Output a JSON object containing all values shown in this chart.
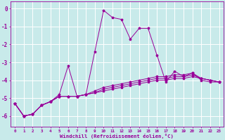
{
  "xlabel": "Windchill (Refroidissement éolien,°C)",
  "background_color": "#c8eaea",
  "grid_color": "#a0d0d0",
  "line_color": "#990099",
  "xlim": [
    -0.5,
    23.5
  ],
  "ylim": [
    -6.6,
    0.4
  ],
  "yticks": [
    0,
    -1,
    -2,
    -3,
    -4,
    -5,
    -6
  ],
  "xticks": [
    0,
    1,
    2,
    3,
    4,
    5,
    6,
    7,
    8,
    9,
    10,
    11,
    12,
    13,
    14,
    15,
    16,
    17,
    18,
    19,
    20,
    21,
    22,
    23
  ],
  "series1": [
    [
      0,
      -5.3
    ],
    [
      1,
      -6.0
    ],
    [
      2,
      -5.9
    ],
    [
      3,
      -5.4
    ],
    [
      4,
      -5.2
    ],
    [
      5,
      -4.8
    ],
    [
      6,
      -3.2
    ],
    [
      7,
      -4.9
    ],
    [
      8,
      -4.8
    ],
    [
      9,
      -2.4
    ],
    [
      10,
      -0.1
    ],
    [
      11,
      -0.5
    ],
    [
      12,
      -0.6
    ],
    [
      13,
      -1.7
    ],
    [
      14,
      -1.1
    ],
    [
      15,
      -1.1
    ],
    [
      16,
      -2.6
    ],
    [
      17,
      -4.1
    ],
    [
      18,
      -3.5
    ],
    [
      19,
      -3.8
    ],
    [
      20,
      -3.6
    ],
    [
      21,
      -4.0
    ],
    [
      22,
      -4.1
    ],
    [
      23,
      -4.1
    ]
  ],
  "series2": [
    [
      0,
      -5.3
    ],
    [
      1,
      -6.0
    ],
    [
      2,
      -5.9
    ],
    [
      3,
      -5.4
    ],
    [
      4,
      -5.2
    ],
    [
      5,
      -4.9
    ],
    [
      6,
      -4.9
    ],
    [
      7,
      -4.9
    ],
    [
      8,
      -4.8
    ],
    [
      9,
      -4.6
    ],
    [
      10,
      -4.4
    ],
    [
      11,
      -4.3
    ],
    [
      12,
      -4.2
    ],
    [
      13,
      -4.1
    ],
    [
      14,
      -4.0
    ],
    [
      15,
      -3.9
    ],
    [
      16,
      -3.8
    ],
    [
      17,
      -3.8
    ],
    [
      18,
      -3.7
    ],
    [
      19,
      -3.7
    ],
    [
      20,
      -3.6
    ],
    [
      21,
      -3.9
    ],
    [
      22,
      -4.0
    ],
    [
      23,
      -4.1
    ]
  ],
  "series3": [
    [
      0,
      -5.3
    ],
    [
      1,
      -6.0
    ],
    [
      2,
      -5.9
    ],
    [
      3,
      -5.4
    ],
    [
      4,
      -5.2
    ],
    [
      5,
      -4.9
    ],
    [
      6,
      -4.9
    ],
    [
      7,
      -4.9
    ],
    [
      8,
      -4.8
    ],
    [
      9,
      -4.7
    ],
    [
      10,
      -4.6
    ],
    [
      11,
      -4.5
    ],
    [
      12,
      -4.4
    ],
    [
      13,
      -4.3
    ],
    [
      14,
      -4.2
    ],
    [
      15,
      -4.1
    ],
    [
      16,
      -4.0
    ],
    [
      17,
      -4.0
    ],
    [
      18,
      -3.9
    ],
    [
      19,
      -3.9
    ],
    [
      20,
      -3.8
    ],
    [
      21,
      -3.9
    ],
    [
      22,
      -4.0
    ],
    [
      23,
      -4.1
    ]
  ],
  "series4": [
    [
      0,
      -5.3
    ],
    [
      1,
      -6.0
    ],
    [
      2,
      -5.9
    ],
    [
      3,
      -5.4
    ],
    [
      4,
      -5.2
    ],
    [
      5,
      -4.9
    ],
    [
      6,
      -4.9
    ],
    [
      7,
      -4.9
    ],
    [
      8,
      -4.8
    ],
    [
      9,
      -4.7
    ],
    [
      10,
      -4.5
    ],
    [
      11,
      -4.4
    ],
    [
      12,
      -4.3
    ],
    [
      13,
      -4.2
    ],
    [
      14,
      -4.1
    ],
    [
      15,
      -4.0
    ],
    [
      16,
      -3.9
    ],
    [
      17,
      -3.9
    ],
    [
      18,
      -3.8
    ],
    [
      19,
      -3.8
    ],
    [
      20,
      -3.7
    ],
    [
      21,
      -3.9
    ],
    [
      22,
      -4.0
    ],
    [
      23,
      -4.1
    ]
  ]
}
